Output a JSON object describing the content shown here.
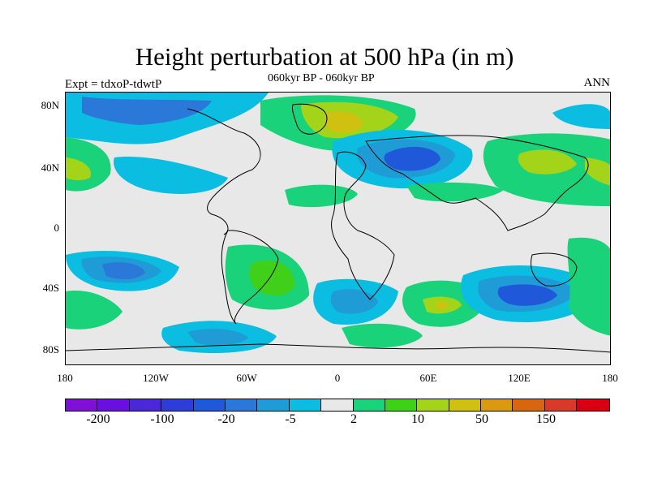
{
  "title": "Height perturbation at 500 hPa (in m)",
  "subtitle": "060kyr BP - 060kyr BP",
  "left_label": "Expt = tdxoP-tdwtP",
  "right_label": "ANN",
  "lat_ticks": [
    "80N",
    "40N",
    "0",
    "40S",
    "80S"
  ],
  "lon_ticks": [
    "180",
    "120W",
    "60W",
    "0",
    "60E",
    "120E",
    "180"
  ],
  "colorbar": {
    "colors": [
      "#7f11d6",
      "#6a0fe0",
      "#4a28d8",
      "#2e3dd8",
      "#1f58d8",
      "#2a78d8",
      "#1f9bd6",
      "#0bbde0",
      "#e8e8e8",
      "#19d27a",
      "#40d019",
      "#a4d41a",
      "#d0c010",
      "#d99a10",
      "#d86510",
      "#d83a2a",
      "#d80010"
    ],
    "labels": [
      "-200",
      "-100",
      "-20",
      "-5",
      "2",
      "10",
      "50",
      "150"
    ]
  },
  "contour_colors": {
    "background": "#e8e8e8",
    "pos_weak": "#19d27a",
    "pos_mid": "#a4d41a",
    "pos_strong": "#d0c010",
    "neg_weak": "#0bbde0",
    "neg_mid": "#1f9bd6",
    "neg_strong": "#1f58d8",
    "coastline": "#000000"
  }
}
